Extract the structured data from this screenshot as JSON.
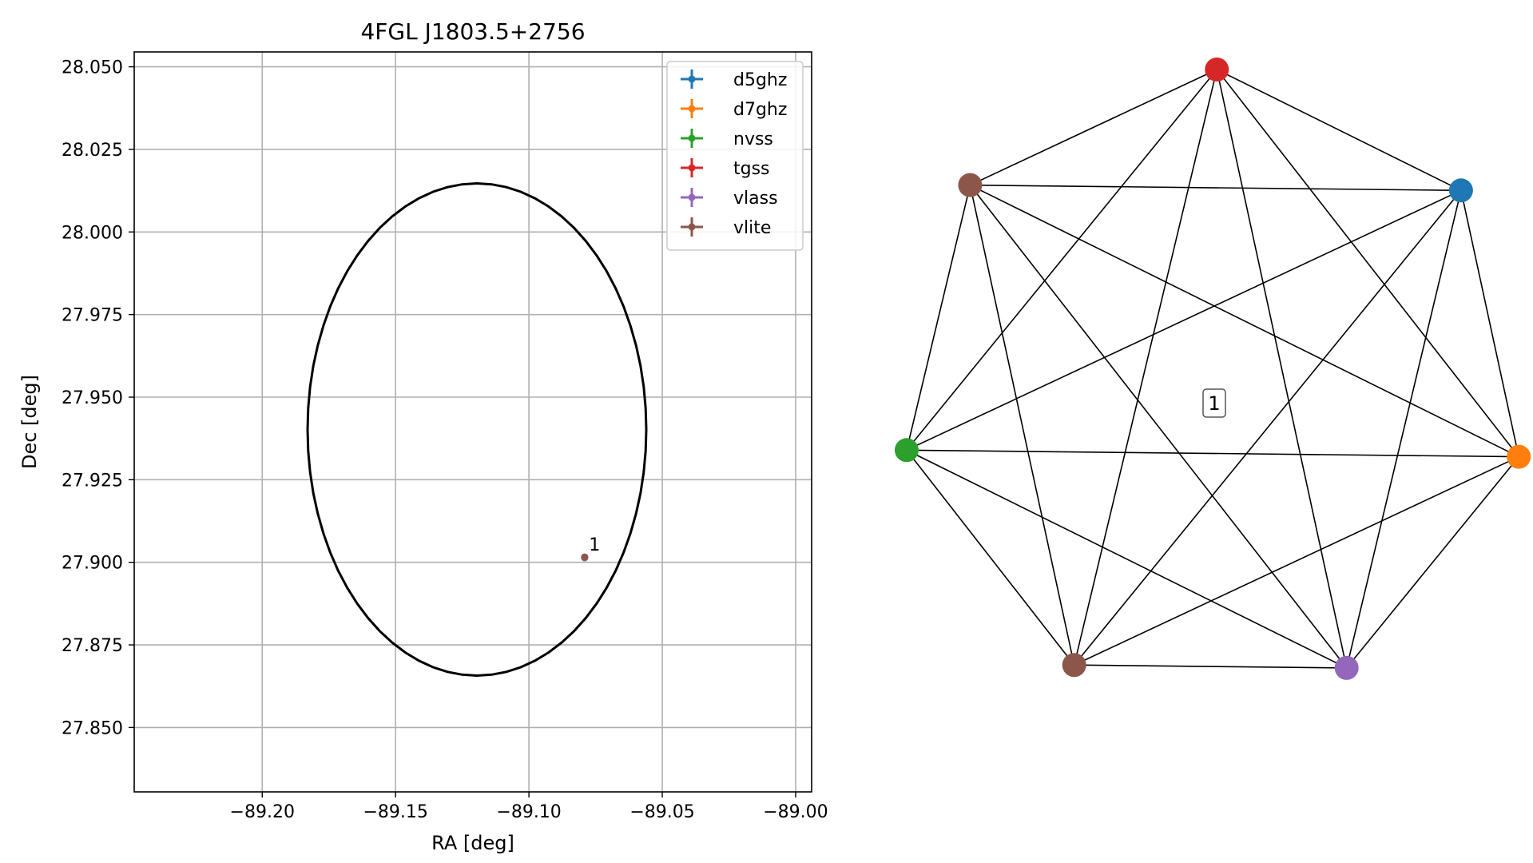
{
  "chart_data": [
    {
      "type": "scatter",
      "title": "4FGL J1803.5+2756",
      "xlabel": "RA [deg]",
      "ylabel": "Dec [deg]",
      "xlim": [
        -89.248,
        -88.994
      ],
      "ylim": [
        27.8305,
        28.0545
      ],
      "xticks": [
        -89.2,
        -89.15,
        -89.1,
        -89.05,
        -89.0
      ],
      "xtick_labels": [
        "−89.20",
        "−89.15",
        "−89.10",
        "−89.05",
        "−89.00"
      ],
      "yticks": [
        27.85,
        27.875,
        27.9,
        27.925,
        27.95,
        27.975,
        28.0,
        28.025,
        28.05
      ],
      "ytick_labels": [
        "27.850",
        "27.875",
        "27.900",
        "27.925",
        "27.950",
        "27.975",
        "28.000",
        "28.025",
        "28.050"
      ],
      "grid": true,
      "legend_position": "top-right",
      "ellipse": {
        "center_ra": -89.1195,
        "center_dec": 27.9402,
        "semi_ra": 0.0635,
        "semi_dec": 0.0745,
        "color": "#000000"
      },
      "series": [
        {
          "name": "d5ghz",
          "color": "#1f77b4",
          "points": [
            {
              "x": -89.0791,
              "y": 27.9014
            }
          ]
        },
        {
          "name": "d7ghz",
          "color": "#ff7f0e",
          "points": [
            {
              "x": -89.0791,
              "y": 27.9014
            }
          ]
        },
        {
          "name": "nvss",
          "color": "#2ca02c",
          "points": [
            {
              "x": -89.0791,
              "y": 27.9014
            }
          ]
        },
        {
          "name": "tgss",
          "color": "#d62728",
          "points": [
            {
              "x": -89.0791,
              "y": 27.9015
            }
          ]
        },
        {
          "name": "vlass",
          "color": "#9467bd",
          "points": [
            {
              "x": -89.0791,
              "y": 27.9014
            }
          ]
        },
        {
          "name": "vlite",
          "color": "#8c564b",
          "points": [
            {
              "x": -89.0791,
              "y": 27.9016
            }
          ]
        }
      ],
      "annotations": [
        {
          "text": "1",
          "x": -89.0775,
          "y": 27.9036
        }
      ]
    },
    {
      "type": "network",
      "nodes": [
        {
          "id": "tgss",
          "color": "#d62728"
        },
        {
          "id": "vlite_a",
          "color": "#8c564b"
        },
        {
          "id": "nvss",
          "color": "#2ca02c"
        },
        {
          "id": "vlite_b",
          "color": "#8c564b"
        },
        {
          "id": "vlass",
          "color": "#9467bd"
        },
        {
          "id": "d7ghz",
          "color": "#ff7f0e"
        },
        {
          "id": "d5ghz",
          "color": "#1f77b4"
        }
      ],
      "edges": "complete",
      "group_label": "1"
    }
  ]
}
